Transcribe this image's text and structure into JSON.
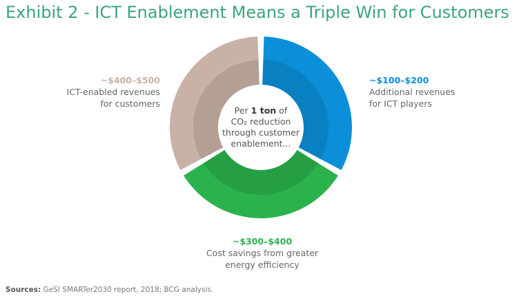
{
  "title": "Exhibit 2 - ICT Enablement Means a Triple Win for Customers",
  "colors": {
    "title": "#3aa57a",
    "ict_players": "#0a8fd8",
    "cost_savings": "#2bb24c",
    "customers": "#c9b1a6"
  },
  "center": {
    "prefix": "Per",
    "bold": "1 ton",
    "suffix": "of",
    "line2": "CO₂ reduction",
    "line3": "through customer",
    "line4": "enablement..."
  },
  "chart_data": {
    "type": "pie",
    "title": "",
    "categories": [
      "Additional revenues for ICT players",
      "Cost savings from greater energy efficiency",
      "ICT-enabled revenues for customers"
    ],
    "series": [
      {
        "values": [
          1,
          1,
          1
        ],
        "ranges": [
          "~$100–$200",
          "~$300–$400",
          "~$400–$500"
        ]
      }
    ],
    "labels": [
      {
        "value": "~$100–$200",
        "line1": "Additional revenues",
        "line2": "for ICT players",
        "color": "#0a8fd8"
      },
      {
        "value": "~$300–$400",
        "line1": "Cost savings from greater",
        "line2": "energy efficiency",
        "color": "#2bb24c"
      },
      {
        "value": "~$400–$500",
        "line1": "ICT-enabled revenues",
        "line2": "for customers",
        "color": "#c9b1a6"
      }
    ]
  },
  "sources": {
    "label": "Sources:",
    "text": "GeSI SMARTer2030 report, 2018; BCG analysis."
  }
}
